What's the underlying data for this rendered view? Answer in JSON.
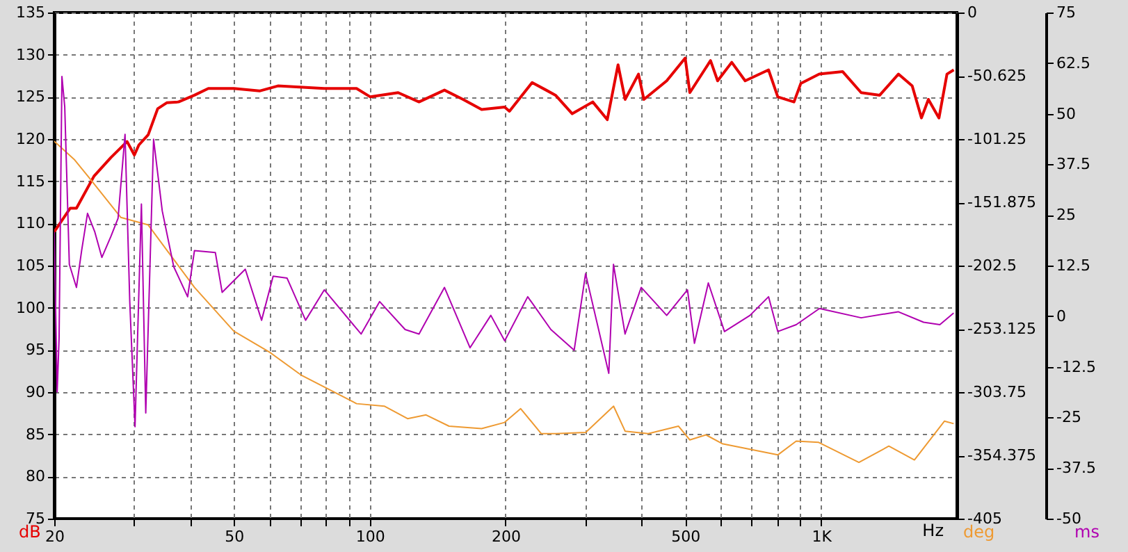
{
  "chart_data": {
    "type": "line",
    "xlabel": "Hz",
    "ylabel": "dB",
    "y2label": "deg",
    "y3label": "ms",
    "log": "x",
    "grid": true,
    "line_style": "solid",
    "marker": "none",
    "xlim": [
      20,
      2000
    ],
    "xticks": [
      20,
      {
        "value": 30,
        "label": null
      },
      {
        "value": 40,
        "label": null
      },
      50,
      {
        "value": 60,
        "label": null
      },
      {
        "value": 70,
        "label": null
      },
      {
        "value": 80,
        "label": null
      },
      {
        "value": 90,
        "label": null
      },
      100,
      200,
      {
        "value": 300,
        "label": null
      },
      {
        "value": 400,
        "label": null
      },
      500,
      {
        "value": 600,
        "label": null
      },
      {
        "value": 700,
        "label": null
      },
      {
        "value": 800,
        "label": null
      },
      {
        "value": 900,
        "label": null
      },
      {
        "value": 1000,
        "label": "1K"
      }
    ],
    "ylim": [
      75,
      135
    ],
    "yticks": [
      75,
      80,
      85,
      90,
      95,
      100,
      105,
      110,
      115,
      120,
      125,
      130,
      135
    ],
    "y2lim": [
      -405,
      0
    ],
    "y2ticks": [
      -405,
      -354.375,
      -303.75,
      -253.125,
      -202.5,
      -151.875,
      -101.25,
      -50.625,
      0
    ],
    "y3lim": [
      -50,
      75
    ],
    "y3ticks": [
      -50,
      -37.5,
      -25,
      -12.5,
      0,
      12.5,
      25,
      37.5,
      50,
      62.5,
      75
    ],
    "series": [
      {
        "color": "#e60000",
        "axis": "y",
        "x": [
          20,
          21.7,
          22.4,
          24.5,
          26.7,
          29,
          30.1,
          30.8,
          32.3,
          33.9,
          35.5,
          37.7,
          40.9,
          43.9,
          50,
          57,
          62.6,
          79.3,
          93.5,
          100.3,
          115.6,
          128.6,
          146.4,
          161,
          177,
          199,
          204,
          229,
          246,
          258,
          281,
          312,
          336,
          355,
          368,
          394,
          405,
          455,
          500,
          512,
          569,
          590,
          634,
          679,
          765,
          802,
          871,
          902,
          991,
          1116,
          1227,
          1349,
          1484,
          1592,
          1669,
          1729,
          1825,
          1901,
          1968
        ],
        "values": [
          109,
          111.8,
          111.8,
          115.6,
          117.8,
          119.7,
          118.1,
          119.3,
          120.5,
          123.6,
          124.3,
          124.4,
          125.2,
          126,
          126,
          125.7,
          126.3,
          126,
          126,
          125,
          125.5,
          124.4,
          125.8,
          124.7,
          123.5,
          123.8,
          123.3,
          126.7,
          125.8,
          125.2,
          123,
          124.4,
          122.3,
          128.8,
          124.7,
          127.7,
          124.7,
          126.9,
          129.6,
          125.5,
          129.3,
          126.9,
          129.1,
          126.9,
          128.2,
          125,
          124.4,
          126.6,
          127.7,
          128,
          125.5,
          125.2,
          127.7,
          126.3,
          122.5,
          124.7,
          122.5,
          127.7,
          128.2
        ]
      },
      {
        "color": "#ee9a32",
        "axis": "y2",
        "x": [
          20,
          22.2,
          24,
          28.1,
          32.3,
          35.5,
          40.9,
          50,
          60.1,
          70.4,
          93.5,
          107.7,
          121.3,
          133.3,
          149.9,
          177,
          199,
          216,
          240,
          258,
          301,
          347,
          368,
          414,
          483,
          512,
          556,
          604,
          802,
          881,
          988,
          1213,
          1413,
          1610,
          1876,
          1967
        ],
        "values": [
          -103,
          -118,
          -133,
          -164,
          -170,
          -190,
          -220,
          -255,
          -272,
          -290,
          -313,
          -315,
          -325,
          -322,
          -331,
          -333,
          -328,
          -317,
          -337,
          -337,
          -336,
          -315,
          -335,
          -337,
          -331,
          -342,
          -338,
          -345,
          -354,
          -343,
          -344,
          -360,
          -347,
          -358,
          -327,
          -329
        ]
      },
      {
        "color": "#b000b0",
        "axis": "y3",
        "x": [
          20,
          20.3,
          20.5,
          20.8,
          21.1,
          21.6,
          22.4,
          23,
          23.7,
          24.6,
          25.5,
          26.7,
          27.7,
          28.7,
          29.4,
          30.2,
          31.2,
          31.9,
          33.2,
          34.7,
          36.8,
          39.5,
          40.9,
          45.5,
          47.1,
          53,
          57.6,
          61.1,
          65.6,
          72.1,
          79.3,
          95.7,
          105.2,
          119.8,
          128.6,
          146.4,
          166.8,
          185.5,
          199.1,
          223.9,
          252,
          283.8,
          300.8,
          338.6,
          346.8,
          367.9,
          399.5,
          455,
          505.9,
          524.2,
          562.6,
          611,
          696,
          765,
          802,
          881,
          992,
          1227,
          1482,
          1687,
          1833,
          1967
        ],
        "values": [
          20.8,
          -18.7,
          -5.5,
          59.2,
          51.7,
          12.8,
          7.1,
          16.2,
          25.4,
          20.8,
          14.5,
          19.7,
          24.2,
          44.9,
          3.6,
          -27.3,
          27.7,
          -23.9,
          43.7,
          26,
          12.2,
          4.8,
          16.2,
          15.7,
          5.9,
          11.6,
          -1,
          9.9,
          9.4,
          -1,
          6.5,
          -4.4,
          3.6,
          -3.3,
          -4.4,
          7.1,
          -7.8,
          0.2,
          -6.1,
          4.8,
          -3.3,
          -8.4,
          10.5,
          -14.1,
          12.8,
          -4.4,
          7.1,
          0.2,
          6.5,
          -6.7,
          8.2,
          -3.8,
          0.2,
          4.8,
          -3.8,
          -2.1,
          1.9,
          -0.4,
          1.1,
          -1.5,
          -2.1,
          0.8
        ]
      }
    ]
  }
}
